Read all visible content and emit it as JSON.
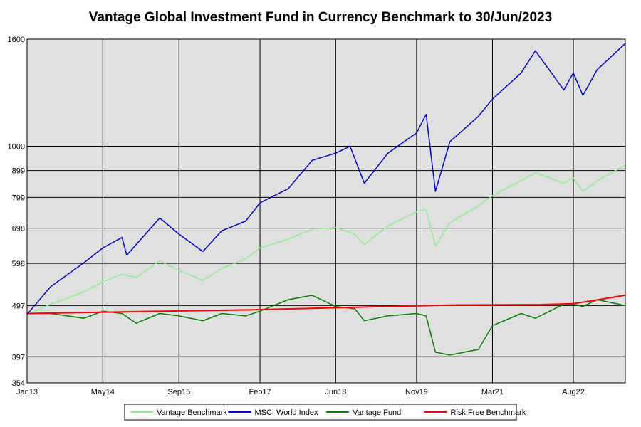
{
  "chart_data": {
    "type": "line",
    "title": "Vantage Global Investment Fund in Currency Benchmark to 30/Jun/2023",
    "xlabel": "",
    "ylabel": "",
    "y_scale": "log",
    "ylim": [
      354,
      1600
    ],
    "xlim": [
      "2013-01-01",
      "2023-06-30"
    ],
    "x_tick_labels": [
      "Jan13",
      "May14",
      "Sep15",
      "Feb17",
      "Jun18",
      "Nov19",
      "Mar21",
      "Aug22"
    ],
    "x_tick_values": [
      "2013-01-01",
      "2014-05-01",
      "2015-09-01",
      "2017-02-01",
      "2018-06-01",
      "2019-11-01",
      "2021-03-01",
      "2022-08-01"
    ],
    "y_ticks": [
      354,
      397,
      497,
      598,
      698,
      799,
      899,
      1000,
      1600
    ],
    "grid": true,
    "background": "#e0e0e0",
    "legend_position": "bottom",
    "series": [
      {
        "name": "Vantage Benchmark",
        "color": "#90ee90",
        "points": [
          [
            "2013-01-01",
            478
          ],
          [
            "2013-06-01",
            500
          ],
          [
            "2014-01-01",
            528
          ],
          [
            "2014-05-01",
            552
          ],
          [
            "2014-09-01",
            570
          ],
          [
            "2014-12-01",
            562
          ],
          [
            "2015-05-01",
            605
          ],
          [
            "2015-09-01",
            580
          ],
          [
            "2016-02-01",
            555
          ],
          [
            "2016-06-01",
            585
          ],
          [
            "2016-11-01",
            610
          ],
          [
            "2017-02-01",
            640
          ],
          [
            "2017-08-01",
            665
          ],
          [
            "2018-01-01",
            695
          ],
          [
            "2018-06-01",
            700
          ],
          [
            "2018-10-01",
            680
          ],
          [
            "2018-12-01",
            650
          ],
          [
            "2019-05-01",
            705
          ],
          [
            "2019-11-01",
            750
          ],
          [
            "2020-01-01",
            760
          ],
          [
            "2020-03-01",
            645
          ],
          [
            "2020-06-01",
            715
          ],
          [
            "2020-12-01",
            770
          ],
          [
            "2021-03-01",
            805
          ],
          [
            "2021-09-01",
            860
          ],
          [
            "2021-12-01",
            890
          ],
          [
            "2022-06-01",
            850
          ],
          [
            "2022-08-01",
            870
          ],
          [
            "2022-10-01",
            820
          ],
          [
            "2023-01-01",
            860
          ],
          [
            "2023-06-30",
            920
          ]
        ]
      },
      {
        "name": "MSCI World Index",
        "color": "#0000cc",
        "points": [
          [
            "2013-01-01",
            478
          ],
          [
            "2013-06-01",
            540
          ],
          [
            "2014-01-01",
            600
          ],
          [
            "2014-05-01",
            640
          ],
          [
            "2014-09-01",
            670
          ],
          [
            "2014-10-01",
            620
          ],
          [
            "2015-05-01",
            730
          ],
          [
            "2015-09-01",
            680
          ],
          [
            "2016-02-01",
            630
          ],
          [
            "2016-06-01",
            690
          ],
          [
            "2016-11-01",
            720
          ],
          [
            "2017-02-01",
            780
          ],
          [
            "2017-08-01",
            830
          ],
          [
            "2018-01-01",
            940
          ],
          [
            "2018-06-01",
            970
          ],
          [
            "2018-09-01",
            1000
          ],
          [
            "2018-12-01",
            850
          ],
          [
            "2019-05-01",
            970
          ],
          [
            "2019-11-01",
            1060
          ],
          [
            "2020-01-01",
            1150
          ],
          [
            "2020-03-01",
            820
          ],
          [
            "2020-06-01",
            1020
          ],
          [
            "2020-12-01",
            1140
          ],
          [
            "2021-03-01",
            1230
          ],
          [
            "2021-09-01",
            1380
          ],
          [
            "2021-12-01",
            1520
          ],
          [
            "2022-06-01",
            1280
          ],
          [
            "2022-08-01",
            1380
          ],
          [
            "2022-10-01",
            1250
          ],
          [
            "2023-01-01",
            1400
          ],
          [
            "2023-06-30",
            1570
          ]
        ]
      },
      {
        "name": "Vantage Fund",
        "color": "#008000",
        "points": [
          [
            "2013-01-01",
            480
          ],
          [
            "2013-06-01",
            480
          ],
          [
            "2014-01-01",
            470
          ],
          [
            "2014-05-01",
            485
          ],
          [
            "2014-09-01",
            480
          ],
          [
            "2014-12-01",
            460
          ],
          [
            "2015-05-01",
            480
          ],
          [
            "2015-09-01",
            475
          ],
          [
            "2016-02-01",
            465
          ],
          [
            "2016-06-01",
            480
          ],
          [
            "2016-11-01",
            475
          ],
          [
            "2017-02-01",
            485
          ],
          [
            "2017-08-01",
            510
          ],
          [
            "2018-01-01",
            520
          ],
          [
            "2018-06-01",
            495
          ],
          [
            "2018-10-01",
            490
          ],
          [
            "2018-12-01",
            465
          ],
          [
            "2019-05-01",
            475
          ],
          [
            "2019-11-01",
            480
          ],
          [
            "2020-01-01",
            475
          ],
          [
            "2020-03-01",
            405
          ],
          [
            "2020-06-01",
            400
          ],
          [
            "2020-12-01",
            410
          ],
          [
            "2021-03-01",
            455
          ],
          [
            "2021-09-01",
            480
          ],
          [
            "2021-12-01",
            470
          ],
          [
            "2022-06-01",
            500
          ],
          [
            "2022-08-01",
            500
          ],
          [
            "2022-10-01",
            495
          ],
          [
            "2023-01-01",
            510
          ],
          [
            "2023-06-30",
            497
          ]
        ]
      },
      {
        "name": "Risk Free Benchmark",
        "color": "#ff0000",
        "points": [
          [
            "2013-01-01",
            480
          ],
          [
            "2015-01-01",
            484
          ],
          [
            "2017-01-01",
            488
          ],
          [
            "2019-01-01",
            494
          ],
          [
            "2020-06-01",
            498
          ],
          [
            "2022-01-01",
            499
          ],
          [
            "2022-08-01",
            501
          ],
          [
            "2023-06-30",
            520
          ]
        ]
      }
    ]
  }
}
